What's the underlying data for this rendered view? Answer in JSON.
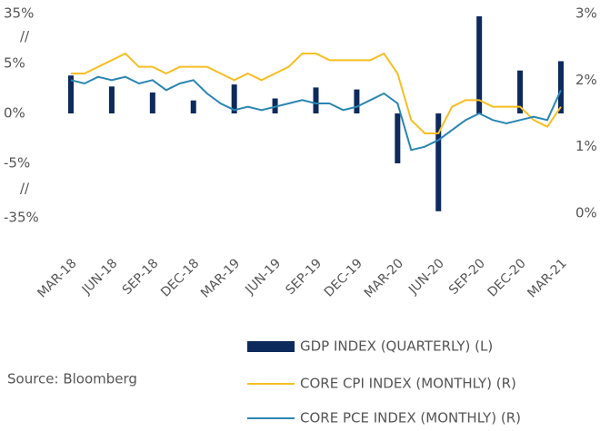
{
  "chart_data": {
    "type": "bar-line",
    "categories": [
      "MAR-18",
      null,
      null,
      "JUN-18",
      null,
      null,
      "SEP-18",
      null,
      null,
      "DEC-18",
      null,
      null,
      "MAR-19",
      null,
      null,
      "JUN-19",
      null,
      null,
      "SEP-19",
      null,
      null,
      "DEC-19",
      null,
      null,
      "MAR-20",
      null,
      null,
      "JUN-20",
      null,
      null,
      "SEP-20",
      null,
      null,
      "DEC-20",
      null,
      null,
      "MAR-21"
    ],
    "series": [
      {
        "name": "GDP INDEX (QUARTERLY) (L)",
        "color": "#0d2a5c",
        "kind": "bar",
        "axis": "y",
        "values": [
          3.8,
          null,
          null,
          2.7,
          null,
          null,
          2.1,
          null,
          null,
          1.3,
          null,
          null,
          2.9,
          null,
          null,
          1.5,
          null,
          null,
          2.6,
          null,
          null,
          2.4,
          null,
          null,
          -5,
          null,
          null,
          -31.4,
          null,
          null,
          33.4,
          null,
          null,
          4.3,
          null,
          null,
          6.4
        ]
      },
      {
        "name": "CORE CPI INDEX (MONTHLY) (R)",
        "color": "#f7be22",
        "kind": "line",
        "axis": "y2",
        "values": [
          2.1,
          2.1,
          2.2,
          2.3,
          2.4,
          2.2,
          2.2,
          2.1,
          2.2,
          2.2,
          2.2,
          2.1,
          2.0,
          2.1,
          2.0,
          2.1,
          2.2,
          2.4,
          2.4,
          2.3,
          2.3,
          2.3,
          2.3,
          2.4,
          2.1,
          1.4,
          1.2,
          1.2,
          1.6,
          1.7,
          1.7,
          1.6,
          1.6,
          1.6,
          1.4,
          1.3,
          1.6
        ]
      },
      {
        "name": "CORE PCE INDEX (MONTHLY) (R)",
        "color": "#2a85b2",
        "kind": "line",
        "axis": "y2",
        "values": [
          2.0,
          1.95,
          2.05,
          2.0,
          2.05,
          1.95,
          2.0,
          1.85,
          1.95,
          2.0,
          1.8,
          1.65,
          1.55,
          1.6,
          1.55,
          1.6,
          1.65,
          1.7,
          1.65,
          1.65,
          1.55,
          1.6,
          1.7,
          1.8,
          1.65,
          0.95,
          1.0,
          1.1,
          1.25,
          1.4,
          1.5,
          1.4,
          1.35,
          1.4,
          1.45,
          1.4,
          1.85
        ]
      }
    ],
    "ylim": [
      -35,
      35
    ],
    "yticks": [
      {
        "value": 35,
        "label": "35%"
      },
      {
        "value": 5,
        "label": "5%"
      },
      {
        "value": 0,
        "label": "0%"
      },
      {
        "value": -5,
        "label": "-5%"
      },
      {
        "value": -35,
        "label": "-35%"
      }
    ],
    "y_breaks": [
      {
        "value": 20,
        "label": "//"
      },
      {
        "value": -20,
        "label": "//"
      }
    ],
    "y2lim": [
      0,
      3
    ],
    "y2ticks": [
      {
        "value": 3,
        "label": "3%"
      },
      {
        "value": 2,
        "label": "2%"
      },
      {
        "value": 1,
        "label": "1%"
      },
      {
        "value": 0,
        "label": "0%"
      }
    ],
    "source": "Source: Bloomberg"
  }
}
